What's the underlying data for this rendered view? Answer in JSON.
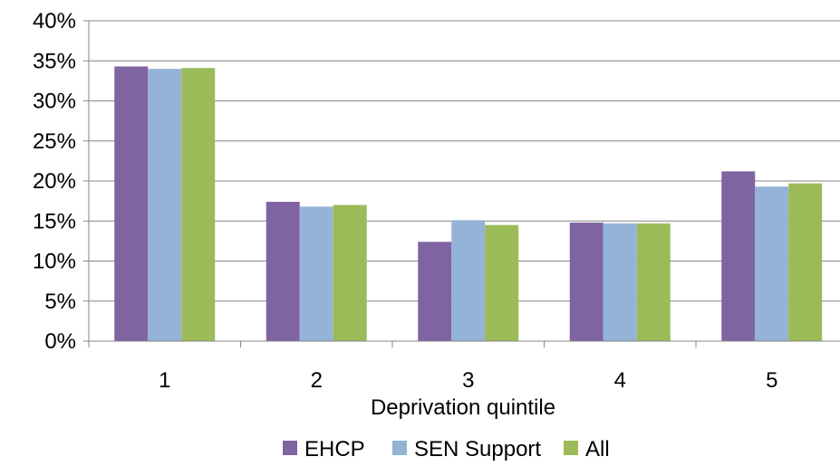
{
  "chart_data": {
    "type": "bar",
    "xlabel": "Deprivation quintile",
    "ylabel": "",
    "title": "",
    "categories": [
      "1",
      "2",
      "3",
      "4",
      "5"
    ],
    "ylim": [
      0,
      40
    ],
    "y_ticks": [
      "0%",
      "5%",
      "10%",
      "15%",
      "20%",
      "25%",
      "30%",
      "35%",
      "40%"
    ],
    "grid": true,
    "legend_position": "bottom",
    "series": [
      {
        "name": "EHCP",
        "color": "#8064A2",
        "values": [
          34.3,
          17.4,
          12.4,
          14.8,
          21.2
        ]
      },
      {
        "name": "SEN Support",
        "color": "#95B3D7",
        "values": [
          34.0,
          16.8,
          15.1,
          14.7,
          19.3
        ]
      },
      {
        "name": "All",
        "color": "#9BBB59",
        "values": [
          34.1,
          17.0,
          14.5,
          14.7,
          19.7
        ]
      }
    ]
  }
}
